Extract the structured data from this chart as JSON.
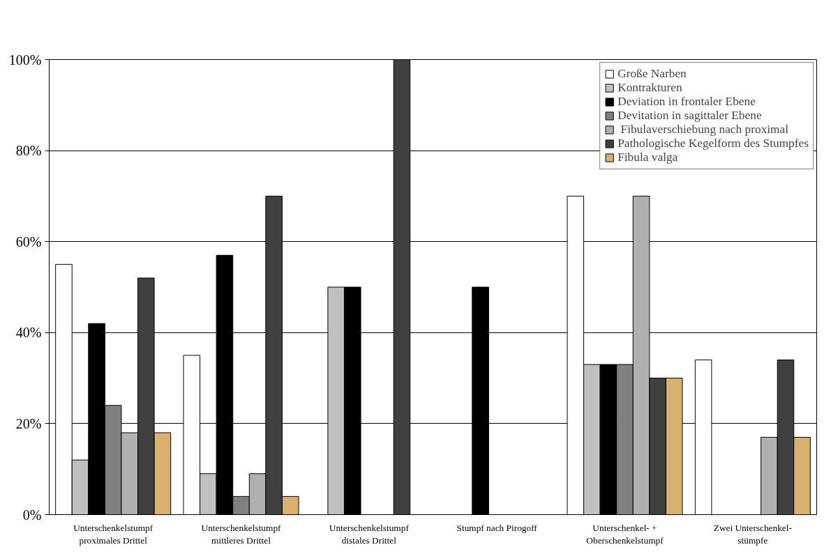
{
  "chart_data": {
    "type": "bar",
    "categories": [
      "Unterschenkelstumpf\nproximales Drittel",
      "Unterschenkelstumpf\nmittleres Drittel",
      "Unterschenkelstumpf\ndistales Drittel",
      "Stumpf nach Pirogoff",
      "Unterschenkel- +\nOberschenkelstumpf",
      "Zwei Unterschenkel-\nstümpfe"
    ],
    "series": [
      {
        "name": "Große Narben",
        "color": "#ffffff",
        "values": [
          55,
          35,
          null,
          null,
          70,
          34
        ]
      },
      {
        "name": "Kontrakturen",
        "color": "#c0c0c0",
        "values": [
          12,
          9,
          50,
          null,
          33,
          null
        ]
      },
      {
        "name": "Deviation in frontaler Ebene",
        "color": "#000000",
        "values": [
          42,
          57,
          50,
          50,
          33,
          null
        ]
      },
      {
        "name": "Devitation in sagittaler Ebene",
        "color": "#808080",
        "values": [
          24,
          4,
          null,
          null,
          33,
          null
        ]
      },
      {
        "name": " Fibulaverschiebung nach proximal",
        "color": "#b0b0b0",
        "values": [
          18,
          9,
          null,
          null,
          70,
          17
        ]
      },
      {
        "name": "Pathologische Kegelform des Stumpfes",
        "color": "#404040",
        "values": [
          52,
          70,
          100,
          null,
          30,
          34
        ]
      },
      {
        "name": "Fibula valga",
        "color": "#d8b070",
        "values": [
          18,
          4,
          null,
          null,
          30,
          17
        ]
      }
    ],
    "ylim": [
      0,
      100
    ],
    "yticks": [
      {
        "value": 0,
        "label": "0%"
      },
      {
        "value": 20,
        "label": "20%"
      },
      {
        "value": 40,
        "label": "40%"
      },
      {
        "value": 60,
        "label": "60%"
      },
      {
        "value": 80,
        "label": "80%"
      },
      {
        "value": 100,
        "label": "100%"
      }
    ],
    "grid": "y",
    "legend": "top right"
  }
}
